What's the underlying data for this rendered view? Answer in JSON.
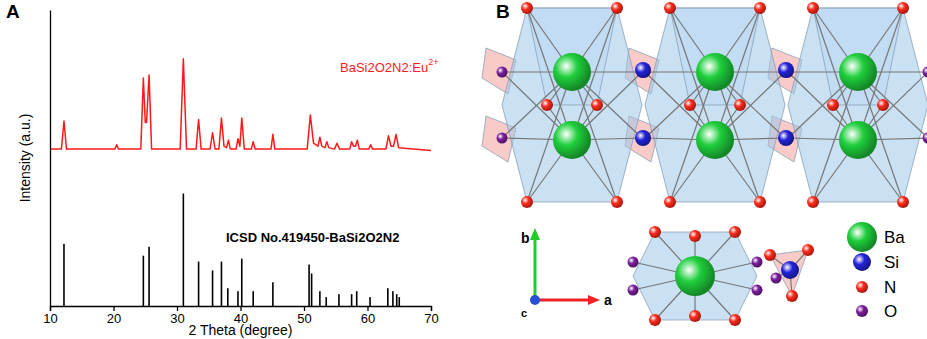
{
  "chart_data": {
    "type": "line",
    "title": "A",
    "x_label": "2 Theta (degree)",
    "y_label": "Intensity (a.u.)",
    "xlim": [
      10,
      70
    ],
    "xticks": [
      10,
      20,
      30,
      40,
      50,
      60,
      70
    ],
    "ylim": [
      0,
      100
    ],
    "tick_labels": "x",
    "series": [
      {
        "name": "BaSi2O2N2:Eu2+",
        "type": "line",
        "color": "#ff1a1a",
        "x": [
          10,
          11.8,
          12.2,
          12.6,
          20.2,
          20.5,
          20.8,
          24.3,
          24.7,
          25.0,
          25.2,
          25.6,
          26.0,
          30.5,
          31.0,
          31.5,
          33.0,
          33.4,
          33.8,
          35.2,
          35.6,
          36.0,
          36.6,
          37.0,
          37.4,
          37.8,
          38.1,
          38.4,
          39.3,
          39.6,
          39.9,
          40.2,
          40.6,
          41.7,
          42.0,
          42.3,
          44.8,
          45.1,
          45.4,
          50.5,
          51.0,
          51.5,
          52.2,
          52.5,
          52.8,
          53.3,
          53.6,
          53.9,
          54.8,
          55.2,
          55.6,
          57.2,
          57.5,
          57.8,
          58.1,
          58.4,
          58.7,
          60.2,
          60.5,
          60.8,
          62.9,
          63.3,
          63.7,
          64.1,
          64.5,
          64.9,
          70
        ],
        "values": [
          53,
          53,
          62.5,
          53,
          53,
          54.5,
          53,
          53,
          77,
          62,
          62,
          78,
          53,
          53,
          83.5,
          53,
          53,
          63,
          53,
          53,
          58.5,
          53,
          53,
          63.5,
          54,
          53.5,
          56,
          53,
          53,
          56.5,
          54,
          63.5,
          53,
          53,
          55.5,
          53,
          53,
          58,
          53,
          53,
          64.5,
          55,
          54,
          57,
          54,
          53.5,
          55.5,
          53.5,
          53,
          55,
          53,
          53,
          55.5,
          54,
          54,
          56,
          53,
          53,
          54.5,
          53,
          53,
          57.5,
          54,
          54,
          58,
          53.5,
          52.5
        ]
      },
      {
        "name": "ICSD No.419450-BaSi2O2N2",
        "type": "bar",
        "color": "#000000",
        "x": [
          12.2,
          24.7,
          25.6,
          31.0,
          33.4,
          35.6,
          37.0,
          38.0,
          39.6,
          40.2,
          42.0,
          45.1,
          50.8,
          51.2,
          52.5,
          53.5,
          55.5,
          57.5,
          58.3,
          60.4,
          63.2,
          64.0,
          64.6,
          65.0
        ],
        "values": [
          21,
          17,
          20,
          38,
          15,
          12,
          15,
          6,
          5,
          16,
          5,
          8,
          14,
          11,
          5,
          3,
          4,
          4,
          5,
          3,
          6,
          5,
          4,
          3
        ]
      }
    ]
  },
  "diagram": {
    "label": "B",
    "axis_labels": {
      "a": "a",
      "b": "b",
      "c": "c"
    },
    "legend": [
      {
        "label": "Ba",
        "color": "#1fcf3c"
      },
      {
        "label": "Si",
        "color": "#2323d9"
      },
      {
        "label": "N",
        "color": "#ff2a1a"
      },
      {
        "label": "O",
        "color": "#7a1f9c"
      }
    ]
  }
}
